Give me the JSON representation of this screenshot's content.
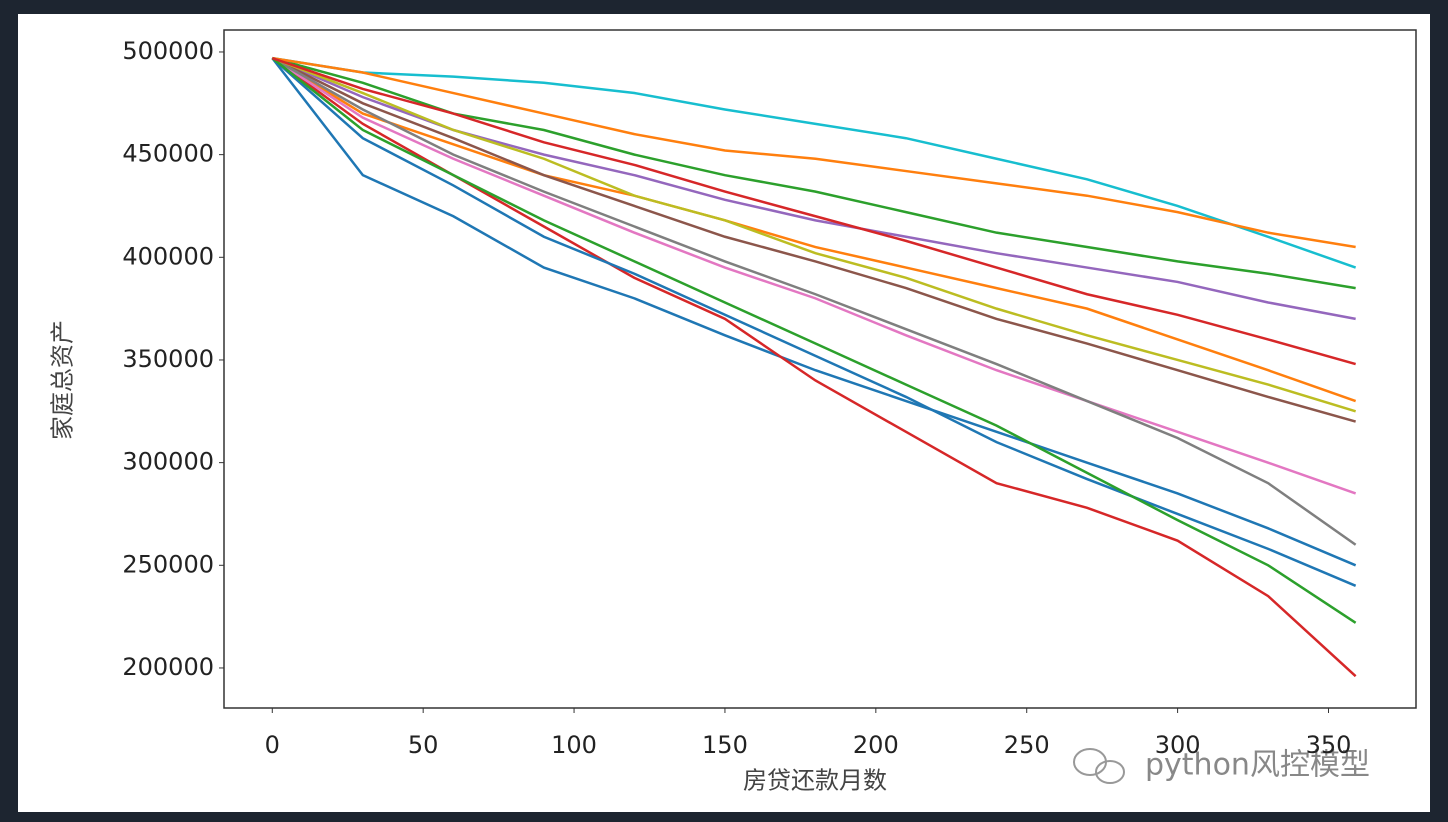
{
  "chart_data": {
    "type": "line",
    "xlabel": "房贷还款月数",
    "ylabel": "家庭总资产",
    "watermark": "python风控模型",
    "x": [
      0,
      30,
      60,
      90,
      120,
      150,
      180,
      210,
      240,
      270,
      300,
      330,
      359
    ],
    "series": [
      {
        "color": "#1f77b4",
        "values": [
          497000,
          440000,
          420000,
          395000,
          380000,
          362000,
          345000,
          330000,
          315000,
          300000,
          285000,
          268000,
          250000
        ]
      },
      {
        "color": "#ff7f0e",
        "values": [
          497000,
          470000,
          455000,
          440000,
          430000,
          418000,
          405000,
          395000,
          385000,
          375000,
          360000,
          345000,
          330000
        ]
      },
      {
        "color": "#2ca02c",
        "values": [
          497000,
          485000,
          470000,
          462000,
          450000,
          440000,
          432000,
          422000,
          412000,
          405000,
          398000,
          392000,
          385000
        ]
      },
      {
        "color": "#d62728",
        "values": [
          497000,
          465000,
          440000,
          415000,
          390000,
          370000,
          340000,
          315000,
          290000,
          278000,
          262000,
          235000,
          196000
        ]
      },
      {
        "color": "#9467bd",
        "values": [
          497000,
          478000,
          462000,
          450000,
          440000,
          428000,
          418000,
          410000,
          402000,
          395000,
          388000,
          378000,
          370000
        ]
      },
      {
        "color": "#8c564b",
        "values": [
          497000,
          475000,
          458000,
          440000,
          425000,
          410000,
          398000,
          385000,
          370000,
          358000,
          345000,
          332000,
          320000
        ]
      },
      {
        "color": "#e377c2",
        "values": [
          497000,
          468000,
          448000,
          430000,
          412000,
          395000,
          380000,
          362000,
          345000,
          330000,
          315000,
          300000,
          285000
        ]
      },
      {
        "color": "#7f7f7f",
        "values": [
          497000,
          472000,
          450000,
          432000,
          415000,
          398000,
          382000,
          365000,
          348000,
          330000,
          312000,
          290000,
          260000
        ]
      },
      {
        "color": "#bcbd22",
        "values": [
          497000,
          480000,
          462000,
          448000,
          430000,
          418000,
          402000,
          390000,
          375000,
          362000,
          350000,
          338000,
          325000
        ]
      },
      {
        "color": "#17becf",
        "values": [
          497000,
          490000,
          488000,
          485000,
          480000,
          472000,
          465000,
          458000,
          448000,
          438000,
          425000,
          410000,
          395000
        ]
      },
      {
        "color": "#1f77b4",
        "values": [
          497000,
          458000,
          435000,
          410000,
          392000,
          372000,
          352000,
          332000,
          310000,
          292000,
          275000,
          258000,
          240000
        ]
      },
      {
        "color": "#ff7f0e",
        "values": [
          497000,
          490000,
          480000,
          470000,
          460000,
          452000,
          448000,
          442000,
          436000,
          430000,
          422000,
          412000,
          405000
        ]
      },
      {
        "color": "#2ca02c",
        "values": [
          497000,
          462000,
          440000,
          418000,
          398000,
          378000,
          358000,
          338000,
          318000,
          295000,
          272000,
          250000,
          222000
        ]
      },
      {
        "color": "#d62728",
        "values": [
          497000,
          482000,
          470000,
          456000,
          445000,
          432000,
          420000,
          408000,
          395000,
          382000,
          372000,
          360000,
          348000
        ]
      }
    ],
    "xlim": [
      -16,
      379
    ],
    "ylim": [
      180500,
      510700
    ],
    "xticks": [
      0,
      50,
      100,
      150,
      200,
      250,
      300,
      350
    ],
    "yticks": [
      200000,
      250000,
      300000,
      350000,
      400000,
      450000,
      500000
    ],
    "grid": false
  }
}
